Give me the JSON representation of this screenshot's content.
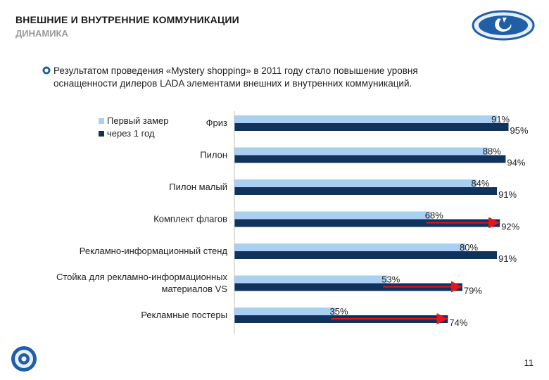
{
  "header": {
    "title": "ВНЕШНИЕ И ВНУТРЕННИЕ КОММУНИКАЦИИ",
    "subtitle": "ДИНАМИКА"
  },
  "bullet": {
    "text_line1": "Результатом проведения «Mystery shopping» в 2011 году стало повышение уровня",
    "text_line2": "оснащенности дилеров LADA элементами внешних и внутренних коммуникаций."
  },
  "colors": {
    "first": "#a9cff2",
    "second": "#12325e",
    "arrow": "#e8141a",
    "logo_blue": "#1f5fa8"
  },
  "chart_data": {
    "type": "bar",
    "orientation": "horizontal",
    "categories": [
      "Фриз",
      "Пилон",
      "Пилон малый",
      "Комплект флагов",
      "Рекламно-информационный стенд",
      "Стойка для рекламно-информационных материалов VS",
      "Рекламные постеры"
    ],
    "category_lines": [
      [
        "Фриз"
      ],
      [
        "Пилон"
      ],
      [
        "Пилон малый"
      ],
      [
        "Комплект флагов"
      ],
      [
        "Рекламно-информационный стенд"
      ],
      [
        "Стойка для рекламно-информационных",
        "материалов VS"
      ],
      [
        "Рекламные постеры"
      ]
    ],
    "series": [
      {
        "name": "Первый замер",
        "values": [
          91,
          88,
          84,
          68,
          80,
          53,
          35
        ]
      },
      {
        "name": "через 1 год",
        "values": [
          95,
          94,
          91,
          92,
          91,
          79,
          74
        ]
      }
    ],
    "value_suffix": "%",
    "xlim": [
      0,
      100
    ],
    "legend_position": "top-left",
    "highlight_arrows_for": [
      "Комплект флагов",
      "Стойка для рекламно-информационных материалов VS",
      "Рекламные постеры"
    ]
  },
  "footer": {
    "page_number": "11"
  }
}
